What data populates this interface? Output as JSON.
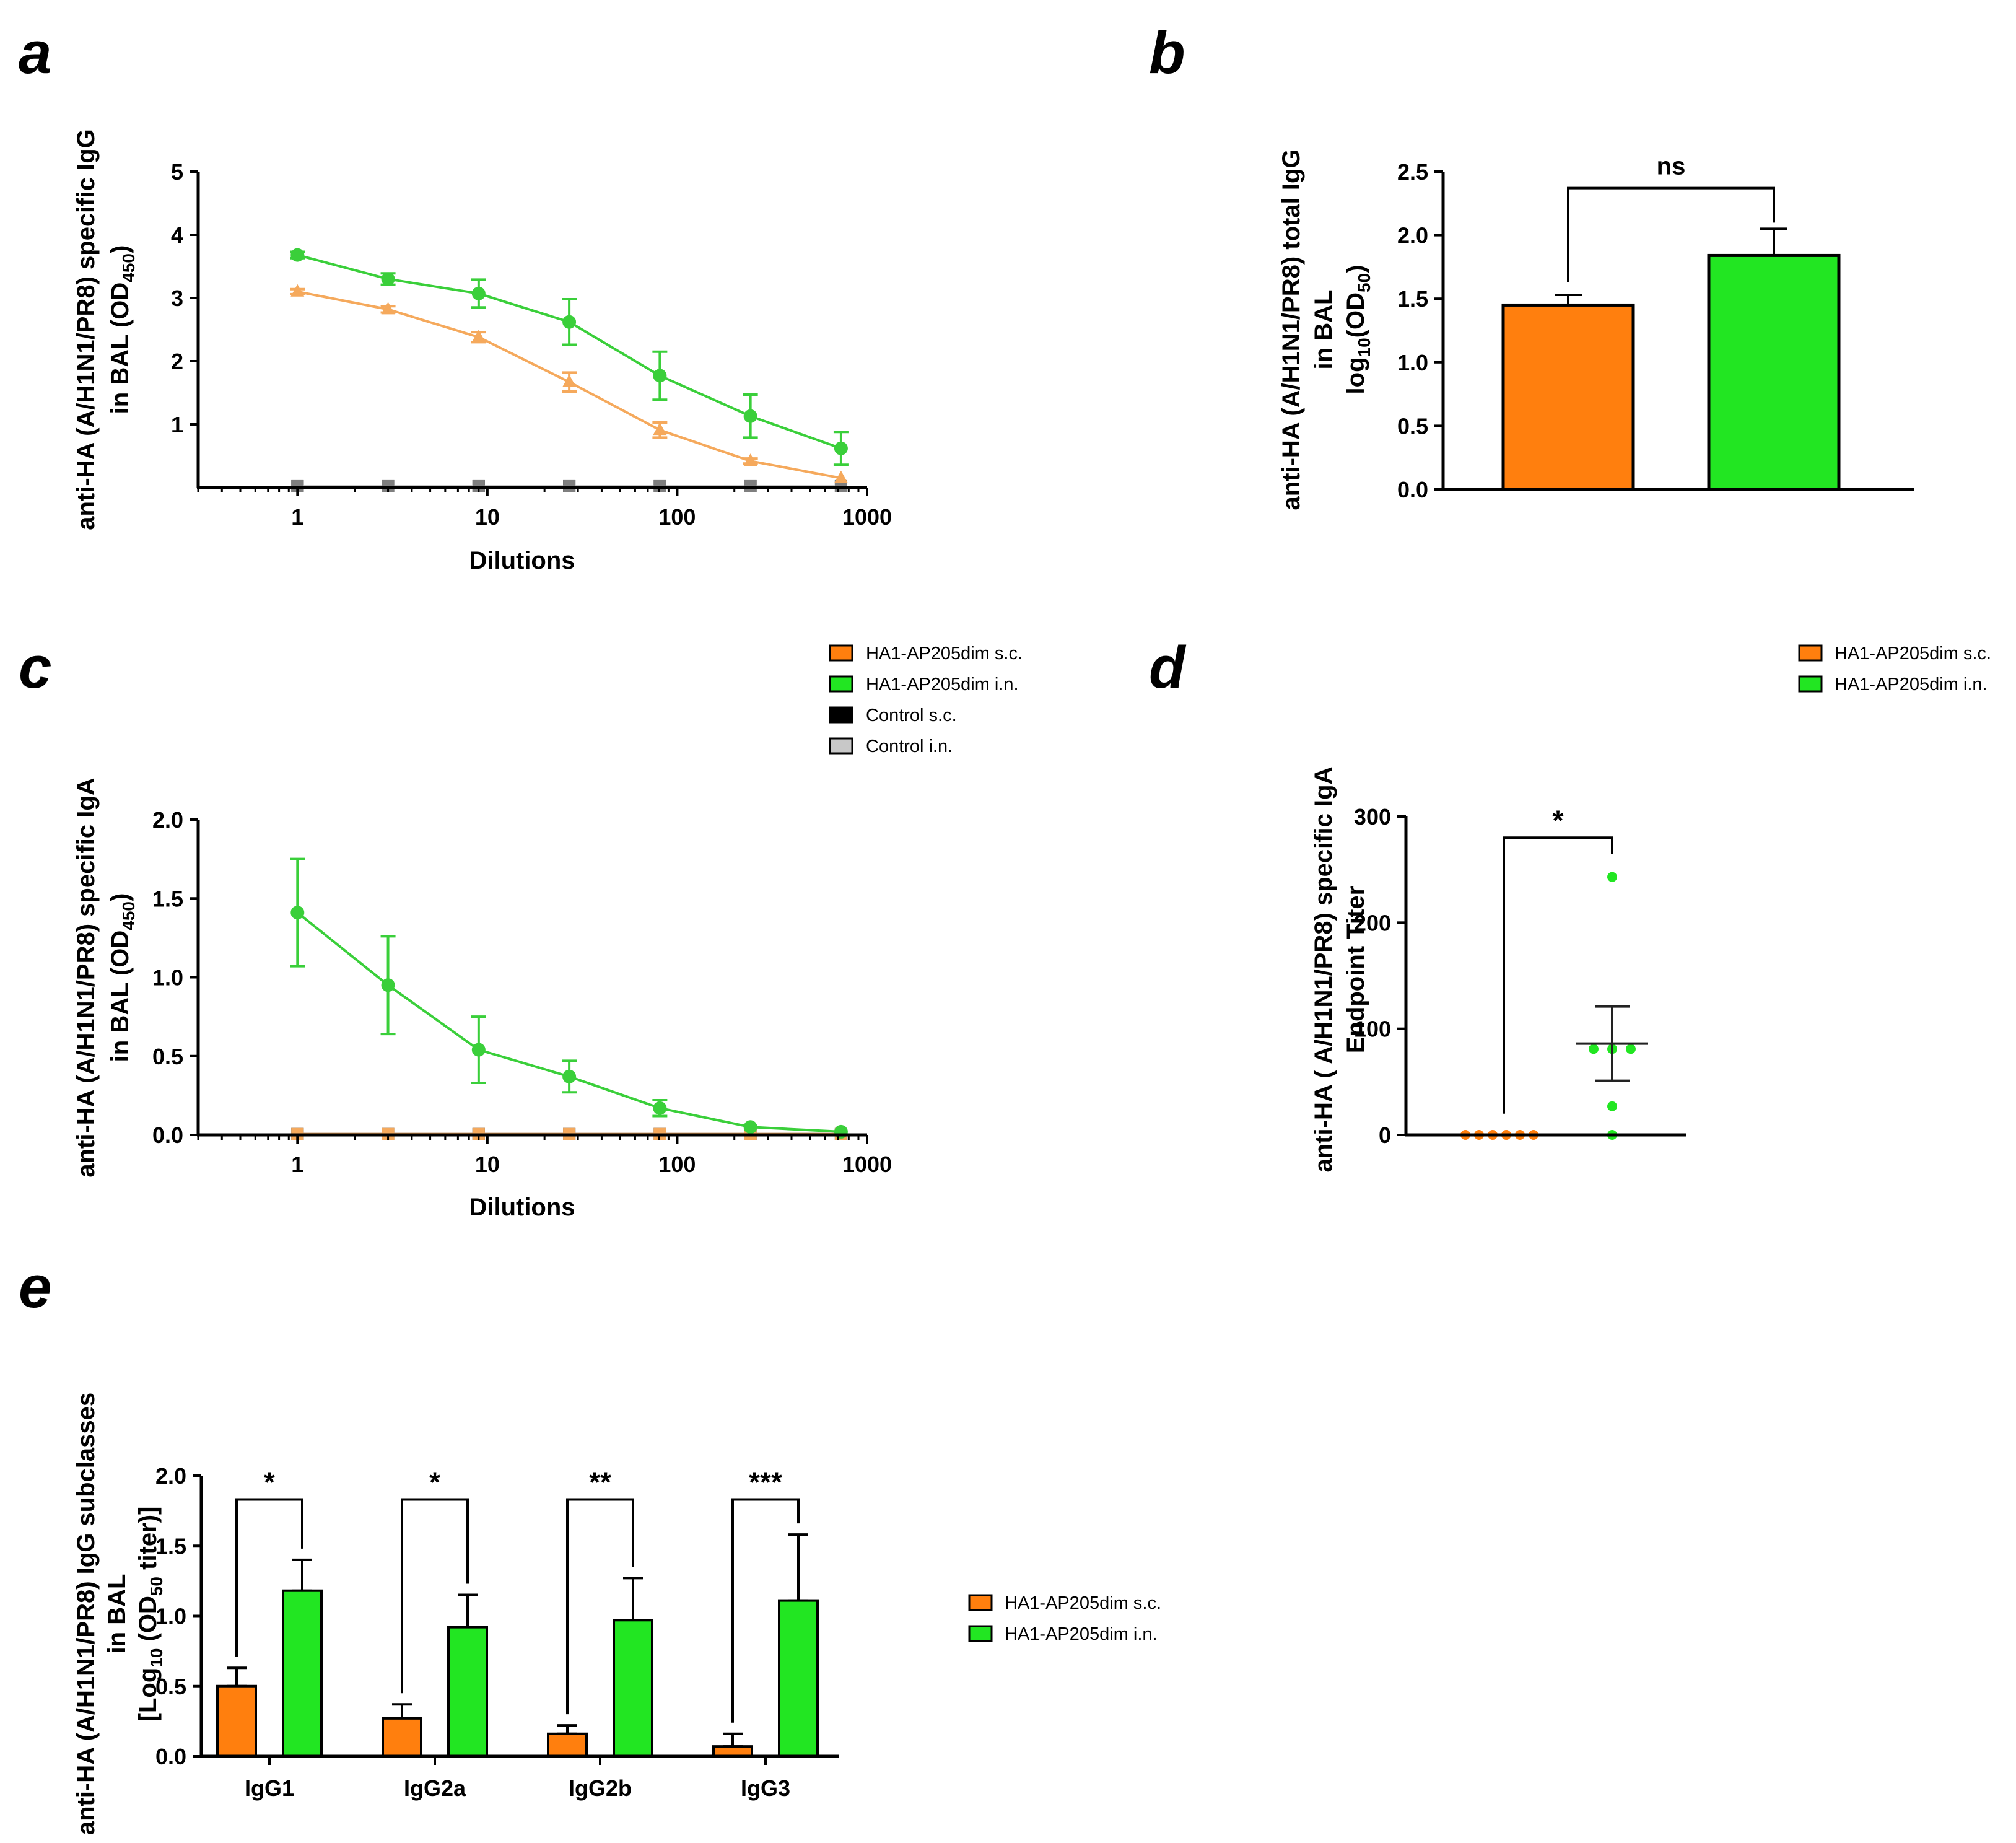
{
  "colors": {
    "sc": "#FF7F0E",
    "in": "#22E622",
    "sc_line": "#F5A95C",
    "in_line": "#3ACF3A",
    "control_sc": "#000000",
    "control_in": "#C8C8C8",
    "control_in_marker": "#7F7F7F"
  },
  "legend": {
    "sc": "HA1-AP205dim s.c.",
    "in": "HA1-AP205dim i.n.",
    "control_sc": "Control s.c.",
    "control_in": "Control i.n."
  },
  "chart_data": [
    {
      "panel": "a",
      "type": "line",
      "x_scale": "log",
      "xlabel": "Dilutions",
      "ylabel": [
        "anti-HA (A/H1N1/PR8) specific IgG",
        "in BAL (OD",
        "450",
        ")"
      ],
      "xlim": [
        0.3,
        1000
      ],
      "ylim": [
        0,
        5
      ],
      "x_ticks": [
        "1",
        "10",
        "100",
        "1000"
      ],
      "y_ticks": [
        "1",
        "2",
        "3",
        "4",
        "5"
      ],
      "x": [
        1,
        3,
        9,
        27,
        81,
        243,
        729
      ],
      "series": [
        {
          "name": "HA1-AP205dim s.c.",
          "values": [
            3.1,
            2.82,
            2.38,
            1.67,
            0.91,
            0.42,
            0.15
          ],
          "err": [
            0.04,
            0.05,
            0.08,
            0.15,
            0.12,
            0.04,
            0.03
          ],
          "marker": "triangle"
        },
        {
          "name": "HA1-AP205dim i.n.",
          "values": [
            3.68,
            3.3,
            3.07,
            2.62,
            1.77,
            1.13,
            0.62
          ],
          "err": [
            0.05,
            0.09,
            0.22,
            0.36,
            0.38,
            0.34,
            0.26
          ],
          "marker": "circle"
        },
        {
          "name": "Control s.c.",
          "values": [
            0.02,
            0.02,
            0.02,
            0.02,
            0.02,
            0.02,
            0.02
          ],
          "marker": "square"
        },
        {
          "name": "Control i.n.",
          "values": [
            0.02,
            0.02,
            0.02,
            0.02,
            0.02,
            0.02,
            0.02
          ],
          "marker": "square"
        }
      ]
    },
    {
      "panel": "b",
      "type": "bar",
      "categories": [
        "HA1-AP205dim s.c.",
        "HA1-AP205dim i.n."
      ],
      "values": [
        1.45,
        1.84
      ],
      "err": [
        0.08,
        0.21
      ],
      "ylabel": [
        "anti-HA (A/H1N1/PR8) total IgG",
        "in BAL",
        "log",
        "10",
        "(OD",
        "50",
        ")"
      ],
      "ylim": [
        0,
        2.5
      ],
      "y_ticks": [
        "0.0",
        "0.5",
        "1.0",
        "1.5",
        "2.0",
        "2.5"
      ],
      "significance": "ns"
    },
    {
      "panel": "c",
      "type": "line",
      "x_scale": "log",
      "xlabel": "Dilutions",
      "ylabel": [
        "anti-HA (A/H1N1/PR8) specific IgA",
        "in BAL (OD",
        "450",
        ")"
      ],
      "xlim": [
        0.3,
        1000
      ],
      "ylim": [
        0,
        2.0
      ],
      "x_ticks": [
        "1",
        "10",
        "100",
        "1000"
      ],
      "y_ticks": [
        "0.0",
        "0.5",
        "1.0",
        "1.5",
        "2.0"
      ],
      "x": [
        1,
        3,
        9,
        27,
        81,
        243,
        729
      ],
      "series": [
        {
          "name": "HA1-AP205dim s.c.",
          "values": [
            0.005,
            0.005,
            0.005,
            0.005,
            0.005,
            0.005,
            0.005
          ],
          "marker": "square"
        },
        {
          "name": "HA1-AP205dim i.n.",
          "values": [
            1.41,
            0.95,
            0.54,
            0.37,
            0.17,
            0.05,
            0.02
          ],
          "err": [
            0.34,
            0.31,
            0.21,
            0.1,
            0.05,
            0.01,
            0.01
          ],
          "marker": "circle"
        },
        {
          "name": "Control s.c.",
          "values": [
            0.005,
            0.005,
            0.005,
            0.005,
            0.005,
            0.005,
            0.005
          ],
          "marker": "square"
        },
        {
          "name": "Control i.n.",
          "values": [
            0.005,
            0.005,
            0.005,
            0.005,
            0.005,
            0.005,
            0.005
          ],
          "marker": "square"
        }
      ]
    },
    {
      "panel": "d",
      "type": "scatter",
      "categories": [
        "HA1-AP205dim s.c.",
        "HA1-AP205dim i.n."
      ],
      "points": [
        [
          0,
          0,
          0,
          0,
          0,
          0
        ],
        [
          243,
          81,
          81,
          81,
          27,
          0
        ]
      ],
      "mean": [
        0,
        86
      ],
      "sem": [
        0,
        35
      ],
      "ylabel": [
        "anti-HA ( A/H1N1/PR8) specific IgA",
        "Endpoint Titer"
      ],
      "ylim": [
        0,
        300
      ],
      "y_ticks": [
        "0",
        "100",
        "200",
        "300"
      ],
      "significance": "*"
    },
    {
      "panel": "e",
      "type": "bar",
      "categories": [
        "IgG1",
        "IgG2a",
        "IgG2b",
        "IgG3"
      ],
      "series": [
        {
          "name": "HA1-AP205dim s.c.",
          "values": [
            0.5,
            0.27,
            0.16,
            0.07
          ],
          "err": [
            0.13,
            0.1,
            0.06,
            0.09
          ]
        },
        {
          "name": "HA1-AP205dim i.n.",
          "values": [
            1.18,
            0.92,
            0.97,
            1.11
          ],
          "err": [
            0.22,
            0.23,
            0.3,
            0.47
          ]
        }
      ],
      "significance": [
        "*",
        "*",
        "**",
        "***"
      ],
      "ylabel": [
        "anti-HA (A/H1N1/PR8) IgG subclasses",
        "in BAL",
        "[Log",
        "10",
        " (OD",
        "50",
        " titer)]"
      ],
      "ylim": [
        0,
        2.0
      ],
      "y_ticks": [
        "0.0",
        "0.5",
        "1.0",
        "1.5",
        "2.0"
      ]
    }
  ],
  "panel_labels": [
    "a",
    "b",
    "c",
    "d",
    "e"
  ]
}
